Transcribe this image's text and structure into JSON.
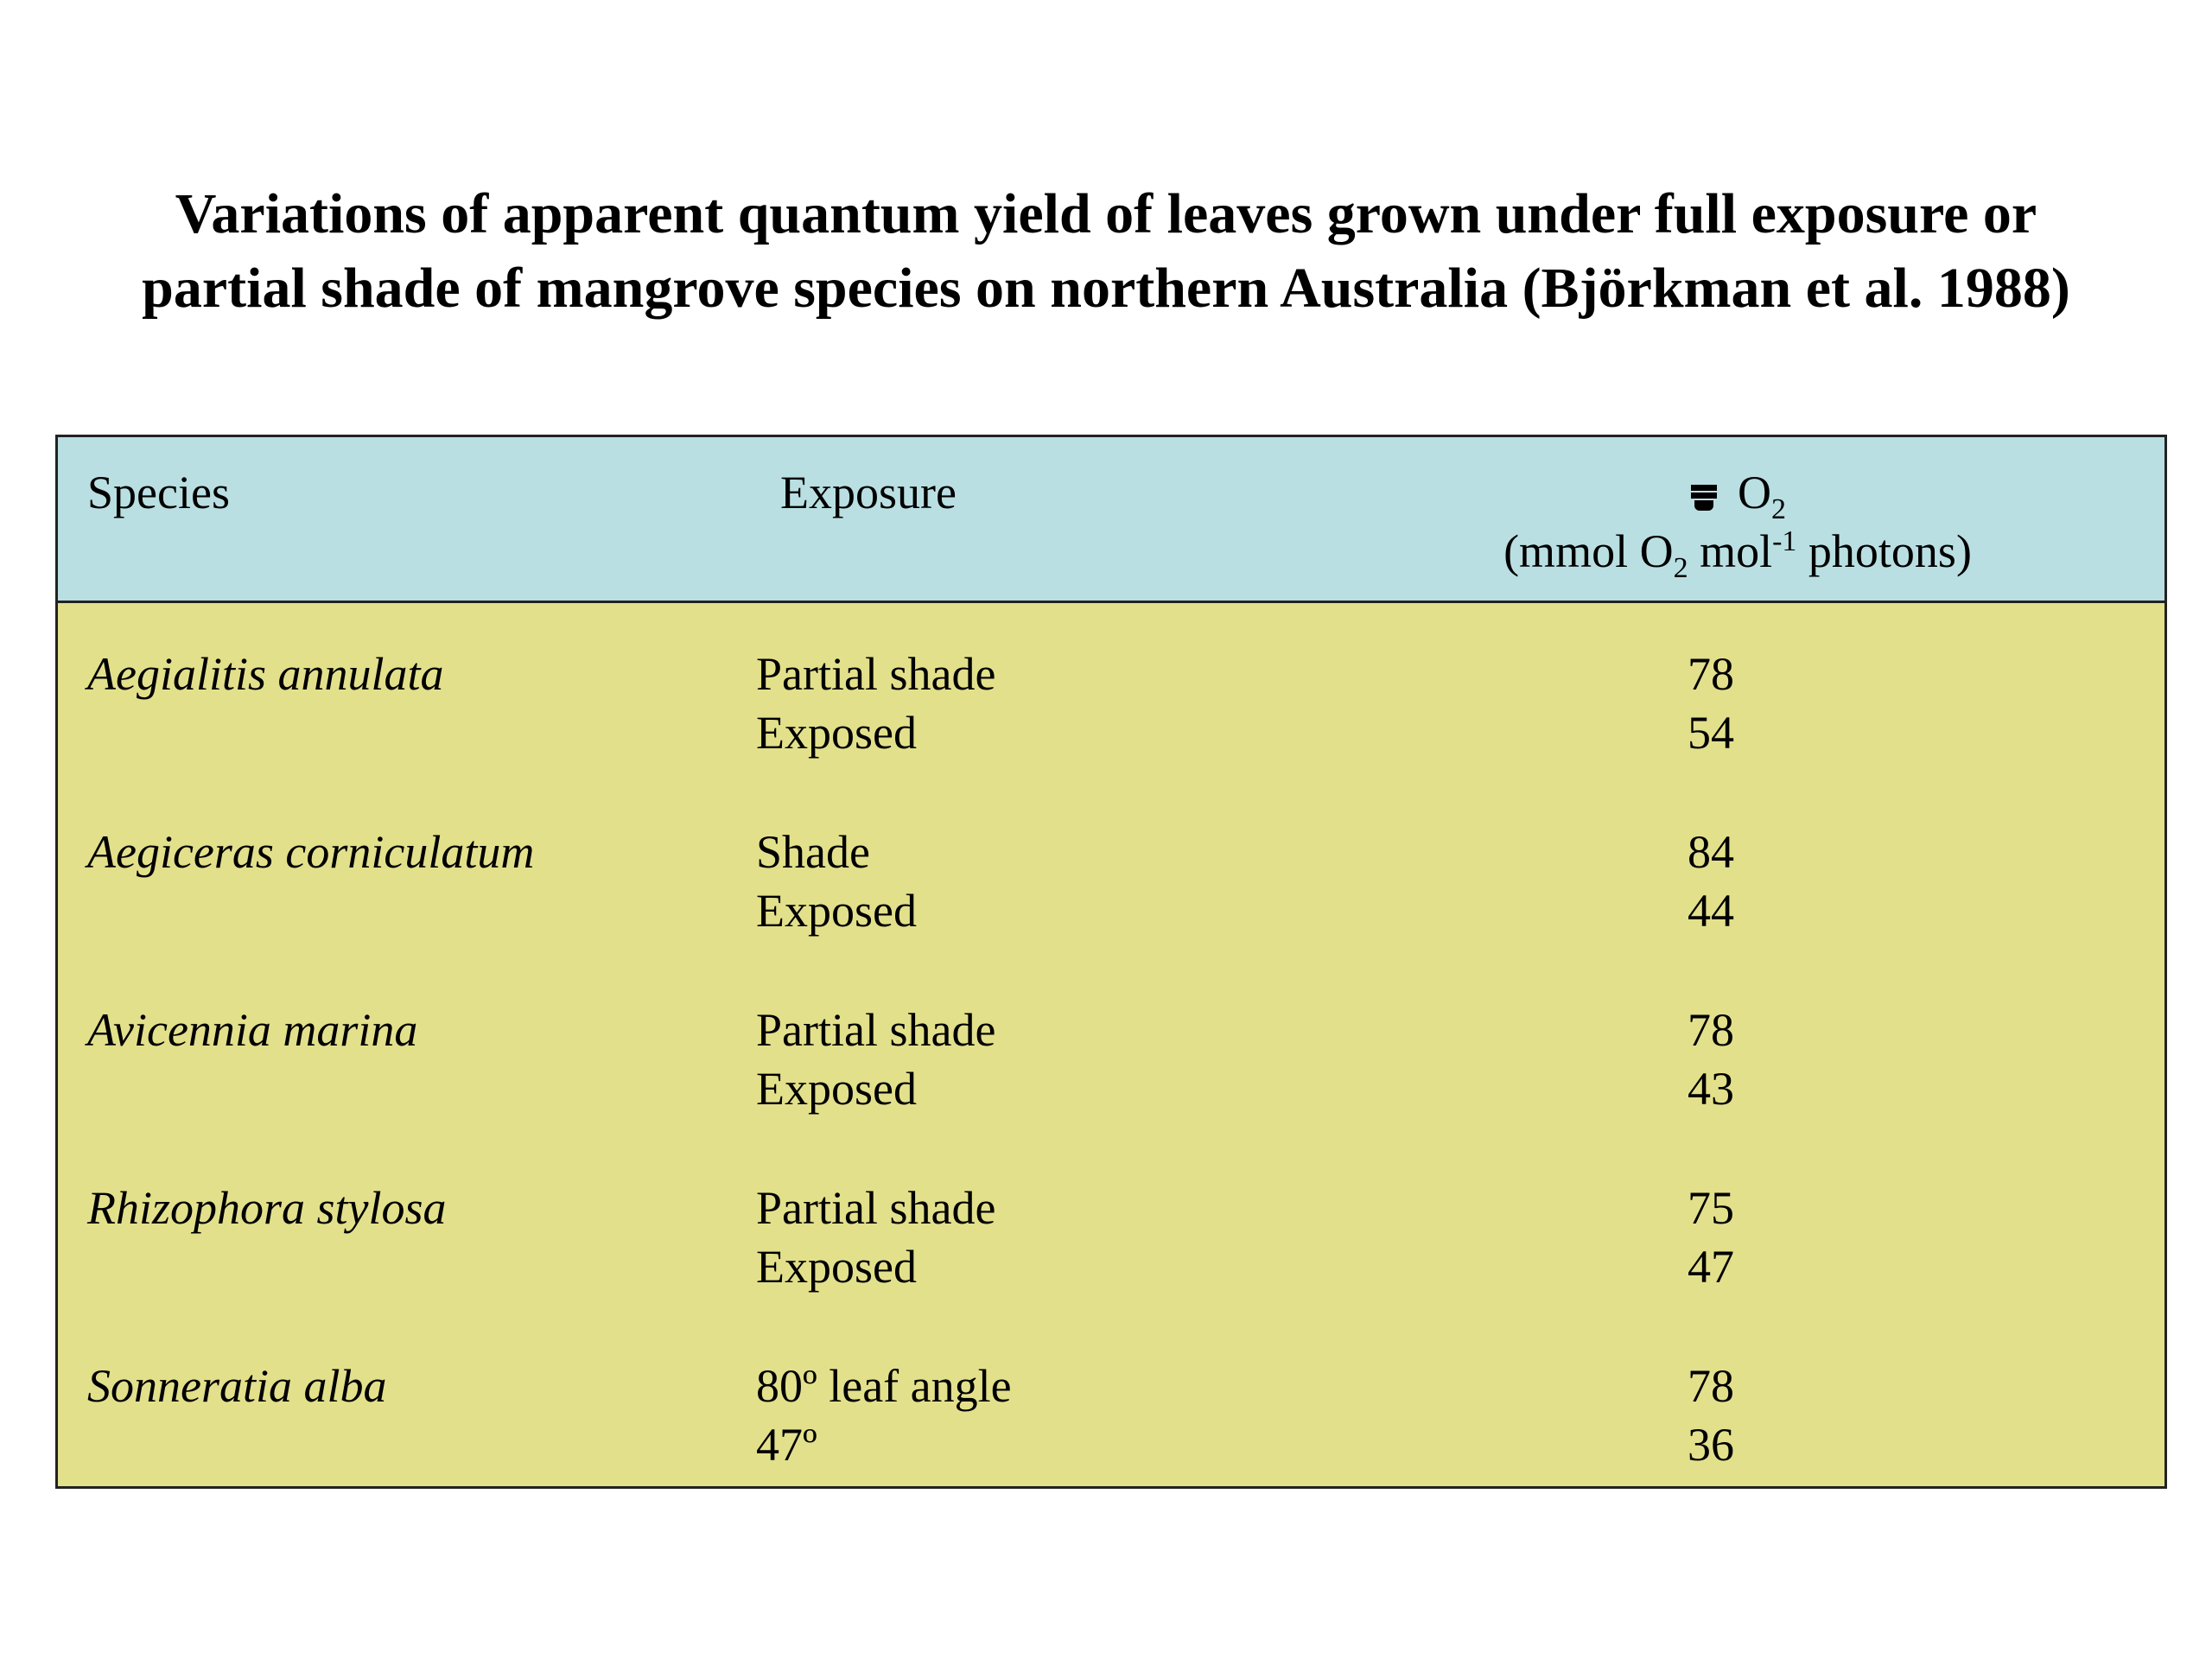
{
  "title": "Variations of apparent quantum yield of leaves grown under full exposure or partial shade of mangrove species on northern Australia (Björkman et al. 1988)",
  "header": {
    "species": "Species",
    "exposure": "Exposure",
    "yield_o2": "O",
    "yield_o2_sub": "2",
    "yield_unit_a": "(mmol O",
    "yield_unit_sub": "2",
    "yield_unit_b": " mol",
    "yield_unit_sup": "-1",
    "yield_unit_c": " photons)",
    "yield_symbol_icon": "phi-symbol-icon"
  },
  "rows": [
    {
      "species": "Aegialitis annulata",
      "exposures": [
        "Partial shade",
        "Exposed"
      ],
      "values": [
        "78",
        "54"
      ]
    },
    {
      "species": "Aegiceras corniculatum",
      "exposures": [
        "Shade",
        "Exposed"
      ],
      "values": [
        "84",
        "44"
      ]
    },
    {
      "species": "Avicennia marina",
      "exposures": [
        "Partial shade",
        "Exposed"
      ],
      "values": [
        "78",
        "43"
      ]
    },
    {
      "species": "Rhizophora stylosa",
      "exposures": [
        "Partial shade",
        "Exposed"
      ],
      "values": [
        "75",
        "47"
      ]
    },
    {
      "species": "Sonneratia alba",
      "exposures": [
        "80º leaf angle",
        "47º"
      ],
      "values": [
        "78",
        "36"
      ]
    }
  ],
  "colors": {
    "header_bg": "#b9dfe2",
    "body_bg": "#e3e08c"
  }
}
